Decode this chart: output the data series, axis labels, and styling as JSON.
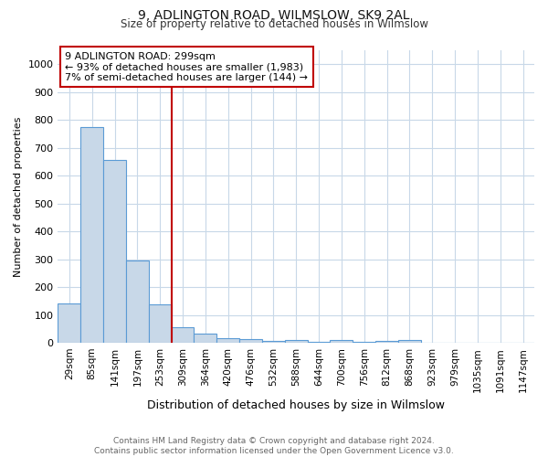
{
  "title1": "9, ADLINGTON ROAD, WILMSLOW, SK9 2AL",
  "title2": "Size of property relative to detached houses in Wilmslow",
  "xlabel": "Distribution of detached houses by size in Wilmslow",
  "ylabel": "Number of detached properties",
  "bar_labels": [
    "29sqm",
    "85sqm",
    "141sqm",
    "197sqm",
    "253sqm",
    "309sqm",
    "364sqm",
    "420sqm",
    "476sqm",
    "532sqm",
    "588sqm",
    "644sqm",
    "700sqm",
    "756sqm",
    "812sqm",
    "868sqm",
    "923sqm",
    "979sqm",
    "1035sqm",
    "1091sqm",
    "1147sqm"
  ],
  "bar_values": [
    140,
    775,
    655,
    295,
    138,
    57,
    32,
    18,
    13,
    7,
    10,
    2,
    10,
    2,
    7,
    10,
    0,
    0,
    0,
    0,
    0
  ],
  "bar_color": "#c8d8e8",
  "bar_edge_color": "#5b9bd5",
  "vline_color": "#c00000",
  "annotation_text": "9 ADLINGTON ROAD: 299sqm\n← 93% of detached houses are smaller (1,983)\n7% of semi-detached houses are larger (144) →",
  "annotation_box_color": "#ffffff",
  "annotation_box_edge": "#c00000",
  "ylim": [
    0,
    1050
  ],
  "yticks": [
    0,
    100,
    200,
    300,
    400,
    500,
    600,
    700,
    800,
    900,
    1000
  ],
  "footnote": "Contains HM Land Registry data © Crown copyright and database right 2024.\nContains public sector information licensed under the Open Government Licence v3.0.",
  "bg_color": "#ffffff",
  "plot_bg_color": "#ffffff",
  "grid_color": "#c8d8e8"
}
